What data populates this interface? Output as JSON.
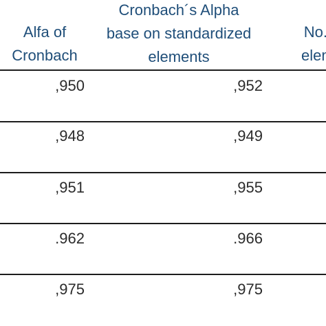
{
  "table": {
    "headers": [
      {
        "lines": [
          "Alfa of",
          "Cronbach"
        ]
      },
      {
        "lines": [
          "Cronbach´s Alpha",
          "base on standardized",
          "elements"
        ]
      },
      {
        "lines": [
          "No. o",
          "eleme"
        ]
      }
    ],
    "rows": [
      {
        "alpha": ",950",
        "alpha_std": ",952"
      },
      {
        "alpha": ",948",
        "alpha_std": ",949"
      },
      {
        "alpha": ",951",
        "alpha_std": ",955"
      },
      {
        "alpha": ".962",
        "alpha_std": ".966"
      },
      {
        "alpha": ",975",
        "alpha_std": ",975"
      }
    ]
  }
}
